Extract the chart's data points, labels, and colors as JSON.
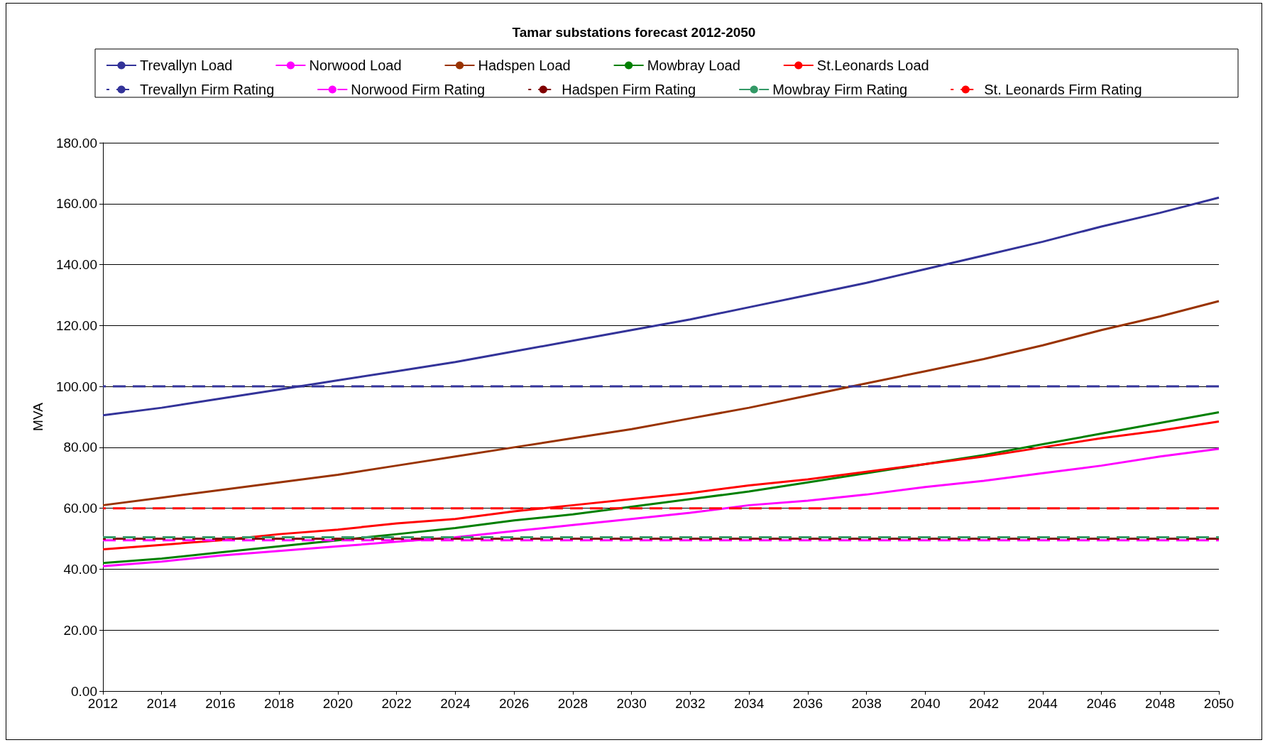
{
  "chart_data": {
    "type": "line",
    "title": "Tamar substations forecast 2012-2050",
    "ylabel": "MVA",
    "x": [
      2012,
      2014,
      2016,
      2018,
      2020,
      2022,
      2024,
      2026,
      2028,
      2030,
      2032,
      2034,
      2036,
      2038,
      2040,
      2042,
      2044,
      2046,
      2048,
      2050
    ],
    "series": [
      {
        "name": "Trevallyn Load",
        "color": "#333399",
        "line_style": "solid",
        "values": [
          90.5,
          93,
          96,
          99,
          102,
          105,
          108,
          111.5,
          115,
          118.5,
          122,
          126,
          130,
          134,
          138.5,
          143,
          147.5,
          152.5,
          157,
          162
        ]
      },
      {
        "name": "Norwood Load",
        "color": "#ff00ff",
        "line_style": "solid",
        "values": [
          41,
          42.5,
          44.5,
          46,
          47.5,
          49,
          50.5,
          52.5,
          54.5,
          56.5,
          58.5,
          61,
          62.5,
          64.5,
          67,
          69,
          71.5,
          74,
          77,
          79.5
        ]
      },
      {
        "name": "Hadspen Load",
        "color": "#993300",
        "line_style": "solid",
        "values": [
          61,
          63.5,
          66,
          68.5,
          71,
          74,
          77,
          80,
          83,
          86,
          89.5,
          93,
          97,
          101,
          105,
          109,
          113.5,
          118.5,
          123,
          128
        ]
      },
      {
        "name": "Mowbray Load",
        "color": "#008000",
        "line_style": "solid",
        "values": [
          42,
          43.5,
          45.5,
          47.5,
          49.5,
          51.5,
          53.5,
          56,
          58,
          60.5,
          63,
          65.5,
          68.5,
          71.5,
          74.5,
          77.5,
          81,
          84.5,
          88,
          91.5
        ]
      },
      {
        "name": "St.Leonards Load",
        "color": "#ff0000",
        "line_style": "solid",
        "values": [
          46.5,
          48,
          49.5,
          51.5,
          53,
          55,
          56.5,
          59,
          61,
          63,
          65,
          67.5,
          69.5,
          72,
          74.5,
          77,
          80,
          83,
          85.5,
          88.5
        ]
      },
      {
        "name": "Trevallyn Firm Rating",
        "color": "#333399",
        "line_style": "dashed",
        "values": [
          100,
          100,
          100,
          100,
          100,
          100,
          100,
          100,
          100,
          100,
          100,
          100,
          100,
          100,
          100,
          100,
          100,
          100,
          100,
          100
        ]
      },
      {
        "name": "Norwood Firm Rating",
        "color": "#ff00ff",
        "line_style": "dashed",
        "values": [
          49.5,
          49.5,
          49.5,
          49.5,
          49.5,
          49.5,
          49.5,
          49.5,
          49.5,
          49.5,
          49.5,
          49.5,
          49.5,
          49.5,
          49.5,
          49.5,
          49.5,
          49.5,
          49.5,
          49.5
        ]
      },
      {
        "name": "Hadspen Firm Rating",
        "color": "#800000",
        "line_style": "dashed",
        "values": [
          50,
          50,
          50,
          50,
          50,
          50,
          50,
          50,
          50,
          50,
          50,
          50,
          50,
          50,
          50,
          50,
          50,
          50,
          50,
          50
        ]
      },
      {
        "name": "Mowbray Firm Rating",
        "color": "#339966",
        "line_style": "dashed",
        "values": [
          50.5,
          50.5,
          50.5,
          50.5,
          50.5,
          50.5,
          50.5,
          50.5,
          50.5,
          50.5,
          50.5,
          50.5,
          50.5,
          50.5,
          50.5,
          50.5,
          50.5,
          50.5,
          50.5,
          50.5
        ]
      },
      {
        "name": "St. Leonards Firm Rating",
        "color": "#ff0000",
        "line_style": "dashed",
        "values": [
          60,
          60,
          60,
          60,
          60,
          60,
          60,
          60,
          60,
          60,
          60,
          60,
          60,
          60,
          60,
          60,
          60,
          60,
          60,
          60
        ]
      }
    ],
    "xlim": [
      2012,
      2050
    ],
    "xticks": [
      2012,
      2014,
      2016,
      2018,
      2020,
      2022,
      2024,
      2026,
      2028,
      2030,
      2032,
      2034,
      2036,
      2038,
      2040,
      2042,
      2044,
      2046,
      2048,
      2050
    ],
    "ylim": [
      0,
      180
    ],
    "yticks": [
      {
        "value": 0,
        "label": "0.00"
      },
      {
        "value": 20,
        "label": "20.00"
      },
      {
        "value": 40,
        "label": "40.00"
      },
      {
        "value": 60,
        "label": "60.00"
      },
      {
        "value": 80,
        "label": "80.00"
      },
      {
        "value": 100,
        "label": "100.00"
      },
      {
        "value": 120,
        "label": "120.00"
      },
      {
        "value": 140,
        "label": "140.00"
      },
      {
        "value": 160,
        "label": "160.00"
      },
      {
        "value": 180,
        "label": "180.00"
      }
    ],
    "grid": "y",
    "legend": "top",
    "marker": "none"
  }
}
